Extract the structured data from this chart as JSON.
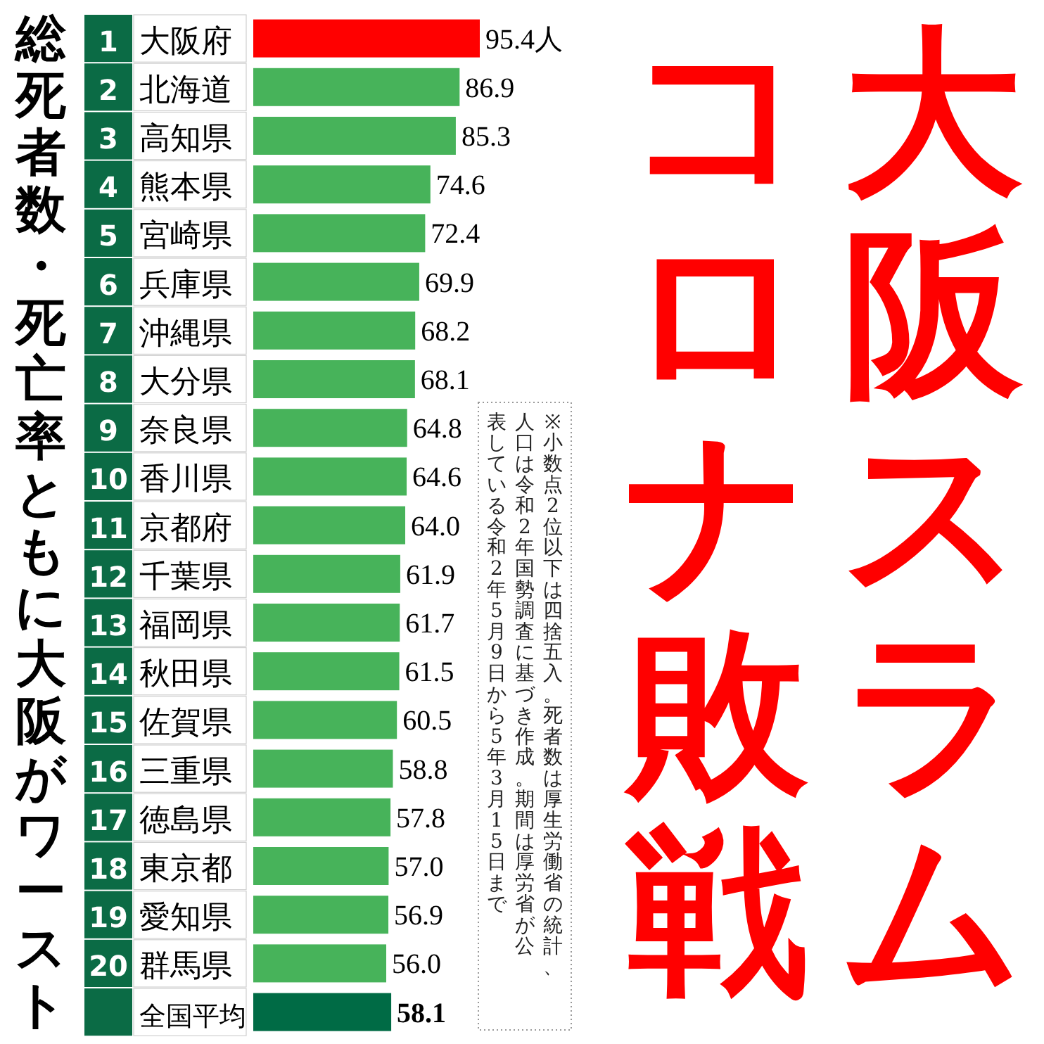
{
  "chart_data": {
    "type": "bar",
    "orientation": "horizontal",
    "title": "大阪スラム",
    "subtitle": "コロナ敗戦",
    "categories": [
      "1 大阪府",
      "2 北海道",
      "3 高知県",
      "4 熊本県",
      "5 宮崎県",
      "6 兵庫県",
      "7 沖縄県",
      "8 大分県",
      "9 奈良県",
      "10 香川県",
      "11 京都府",
      "12 千葉県",
      "13 福岡県",
      "14 秋田県",
      "15 佐賀県",
      "16 三重県",
      "17 徳島県",
      "18 東京都",
      "19 愛知県",
      "20 群馬県",
      "全国平均"
    ],
    "values": [
      95.4,
      86.9,
      85.3,
      74.6,
      72.4,
      69.9,
      68.2,
      68.1,
      64.8,
      64.6,
      64.0,
      61.9,
      61.7,
      61.5,
      60.5,
      58.8,
      57.8,
      57.0,
      56.9,
      56.0,
      58.1
    ],
    "value_labels": [
      "95.4人",
      "86.9",
      "85.3",
      "74.6",
      "72.4",
      "69.9",
      "68.2",
      "68.1",
      "64.8",
      "64.6",
      "64.0",
      "61.9",
      "61.7",
      "61.5",
      "60.5",
      "58.8",
      "57.8",
      "57.0",
      "56.9",
      "56.0",
      "58.1"
    ],
    "colors": [
      "#ff0000",
      "#47b35a",
      "#47b35a",
      "#47b35a",
      "#47b35a",
      "#47b35a",
      "#47b35a",
      "#47b35a",
      "#47b35a",
      "#47b35a",
      "#47b35a",
      "#47b35a",
      "#47b35a",
      "#47b35a",
      "#47b35a",
      "#47b35a",
      "#47b35a",
      "#47b35a",
      "#47b35a",
      "#47b35a",
      "#006b45"
    ],
    "annotations": [
      "総死者数・死亡率ともに大阪がワースト",
      "※小数点2位以下は四捨五入。死者数は厚生労働省の統計、",
      "人口は令和2年国勢調査に基づき作成。期間は厚労省が公",
      "表している令和2年5月9日から5年3月15日まで"
    ]
  }
}
